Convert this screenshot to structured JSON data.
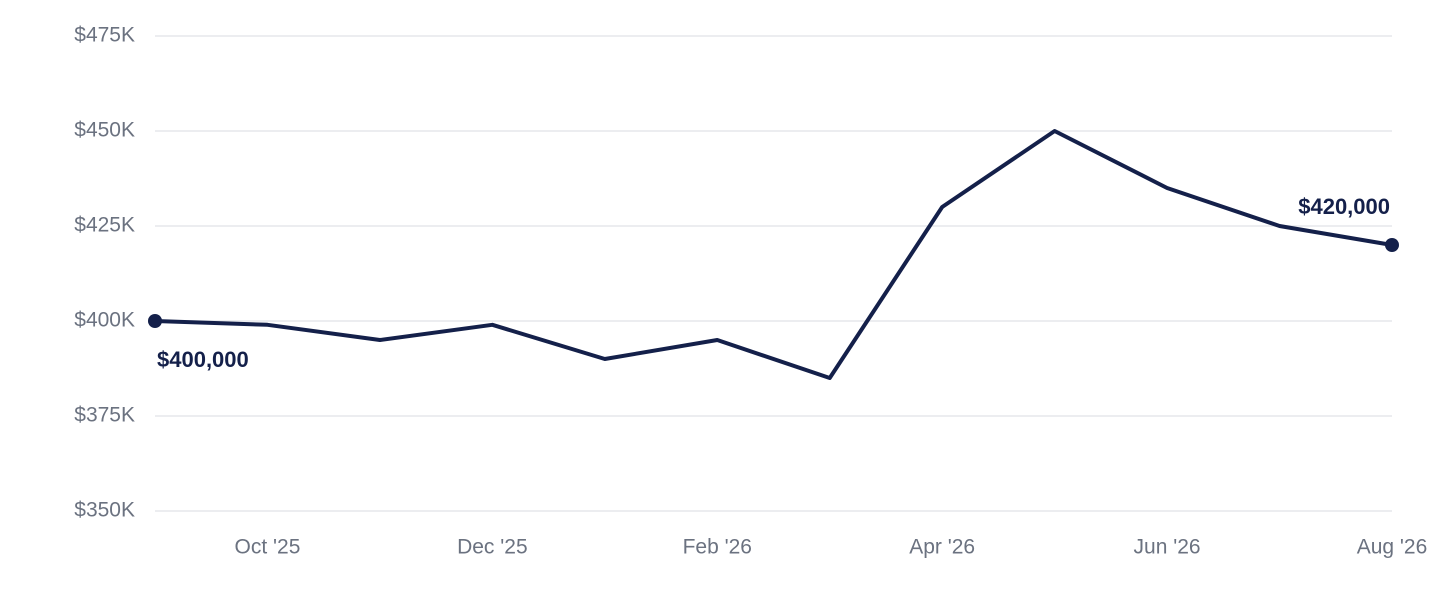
{
  "chart_data": {
    "type": "line",
    "categories": [
      null,
      "Oct '25",
      null,
      "Dec '25",
      null,
      "Feb '26",
      null,
      "Apr '26",
      null,
      "Jun '26",
      null,
      "Aug '26"
    ],
    "series": [
      {
        "color": "#14204a",
        "values": [
          400000,
          399000,
          395000,
          399000,
          390000,
          395000,
          385000,
          430000,
          450000,
          435000,
          425000,
          420000
        ],
        "value_labels": [
          "$400,000",
          null,
          null,
          null,
          null,
          null,
          null,
          null,
          null,
          null,
          null,
          "$420,000"
        ]
      }
    ],
    "ylim": [
      350000,
      475000
    ],
    "yticks": [
      {
        "value": 350000,
        "label": "$350K"
      },
      {
        "value": 375000,
        "label": "$375K"
      },
      {
        "value": 400000,
        "label": "$400K"
      },
      {
        "value": 425000,
        "label": "$425K"
      },
      {
        "value": 450000,
        "label": "$450K"
      },
      {
        "value": 475000,
        "label": "$475K"
      }
    ],
    "grid": true
  }
}
